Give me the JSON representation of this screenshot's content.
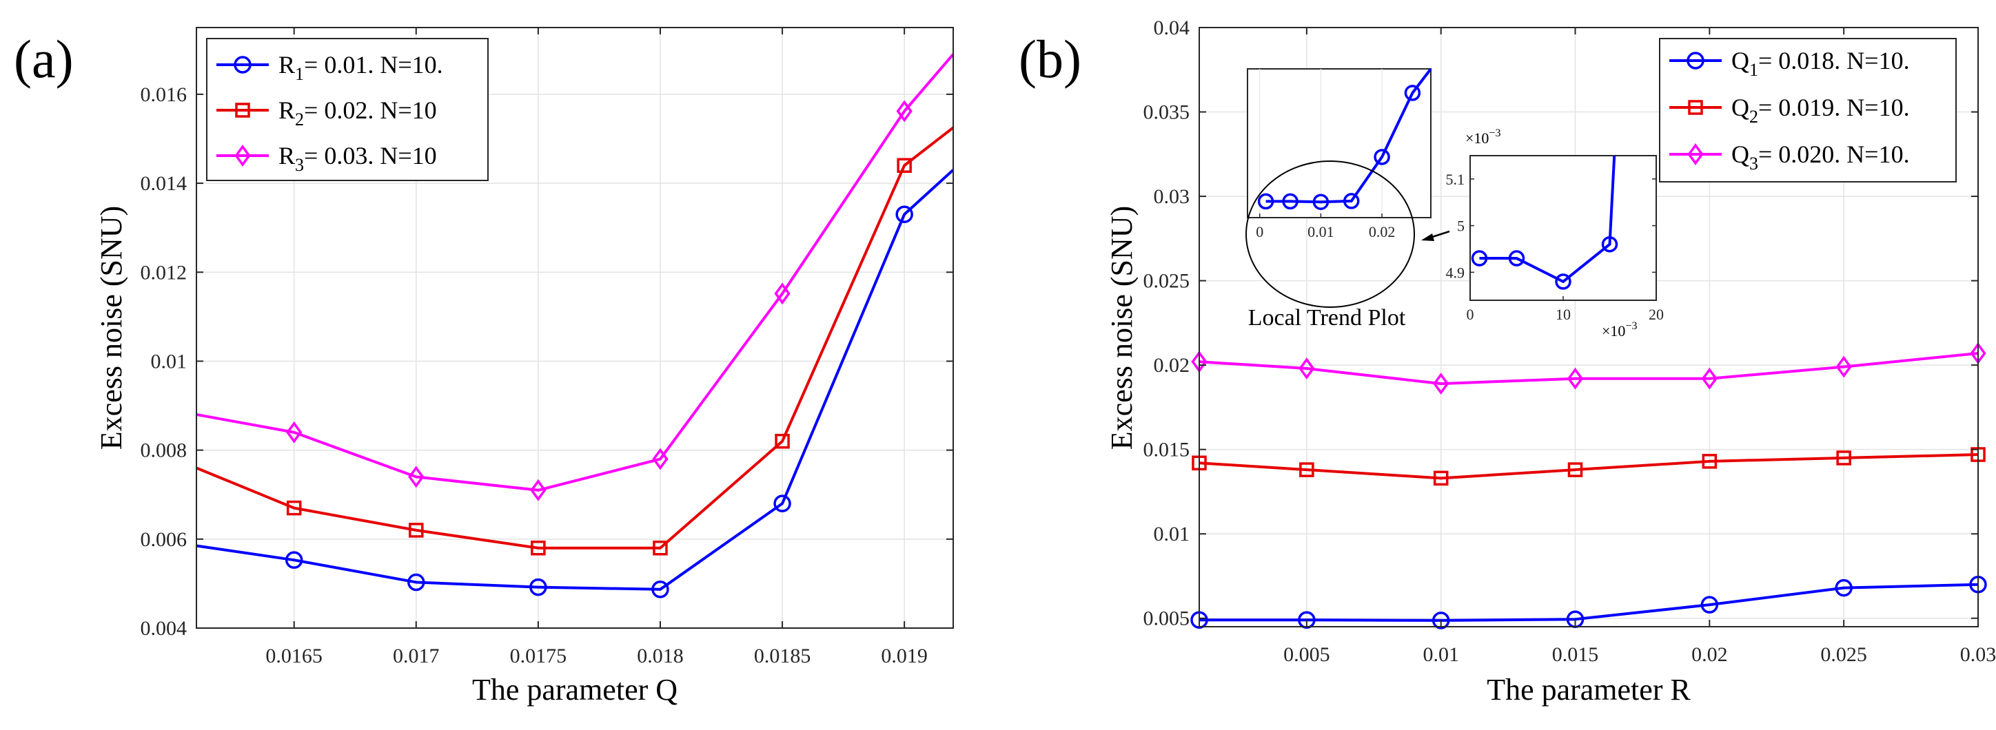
{
  "chart_data": [
    {
      "type": "line",
      "panel_label": "(a)",
      "xlabel": "The parameter Q",
      "ylabel": "Excess noise (SNU)",
      "xlim": [
        0.0161,
        0.0192
      ],
      "ylim": [
        0.004,
        0.0175
      ],
      "grid": true,
      "legend_position": "top-left",
      "xticks": [
        {
          "value": 0.0165,
          "label": "0.0165"
        },
        {
          "value": 0.017,
          "label": "0.017"
        },
        {
          "value": 0.0175,
          "label": "0.0175"
        },
        {
          "value": 0.018,
          "label": "0.018"
        },
        {
          "value": 0.0185,
          "label": "0.0185"
        },
        {
          "value": 0.019,
          "label": "0.019"
        }
      ],
      "yticks": [
        {
          "value": 0.004,
          "label": "0.004"
        },
        {
          "value": 0.006,
          "label": "0.006"
        },
        {
          "value": 0.008,
          "label": "0.008"
        },
        {
          "value": 0.01,
          "label": "0.01"
        },
        {
          "value": 0.012,
          "label": "0.012"
        },
        {
          "value": 0.014,
          "label": "0.014"
        },
        {
          "value": 0.016,
          "label": "0.016"
        }
      ],
      "x": [
        0.0165,
        0.017,
        0.0175,
        0.018,
        0.0185,
        0.019
      ],
      "series": [
        {
          "name": "R1 = 0.01. N=10.",
          "label_base": "R",
          "label_sub": "1",
          "label_rest": "= 0.01. N=10.",
          "color": "#0000ff",
          "marker": "circle",
          "start": [
            0.0161,
            0.00585
          ],
          "end": [
            0.0192,
            0.0143
          ],
          "values": [
            0.00553,
            0.00503,
            0.00492,
            0.00487,
            0.0068,
            0.0133
          ]
        },
        {
          "name": "R2 = 0.02. N=10",
          "label_base": "R",
          "label_sub": "2",
          "label_rest": "= 0.02. N=10",
          "color": "#e60000",
          "marker": "square",
          "start": [
            0.0161,
            0.0076
          ],
          "end": [
            0.0192,
            0.01525
          ],
          "values": [
            0.0067,
            0.0062,
            0.0058,
            0.0058,
            0.0082,
            0.0144
          ]
        },
        {
          "name": "R3 = 0.03. N=10",
          "label_base": "R",
          "label_sub": "3",
          "label_rest": "= 0.03. N=10",
          "color": "#ff00ff",
          "marker": "diamond",
          "start": [
            0.0161,
            0.0088
          ],
          "end": [
            0.0192,
            0.0169
          ],
          "values": [
            0.0084,
            0.0074,
            0.0071,
            0.0078,
            0.01152,
            0.01562
          ]
        }
      ]
    },
    {
      "type": "line",
      "panel_label": "(b)",
      "xlabel": "The parameter R",
      "ylabel": "Excess noise (SNU)",
      "xlim": [
        0.001,
        0.03
      ],
      "ylim": [
        0.0045,
        0.04
      ],
      "grid": true,
      "legend_position": "top-right",
      "xticks": [
        {
          "value": 0.005,
          "label": "0.005"
        },
        {
          "value": 0.01,
          "label": "0.01"
        },
        {
          "value": 0.015,
          "label": "0.015"
        },
        {
          "value": 0.02,
          "label": "0.02"
        },
        {
          "value": 0.025,
          "label": "0.025"
        },
        {
          "value": 0.03,
          "label": "0.03"
        }
      ],
      "yticks": [
        {
          "value": 0.005,
          "label": "0.005"
        },
        {
          "value": 0.01,
          "label": "0.01"
        },
        {
          "value": 0.015,
          "label": "0.015"
        },
        {
          "value": 0.02,
          "label": "0.02"
        },
        {
          "value": 0.025,
          "label": "0.025"
        },
        {
          "value": 0.03,
          "label": "0.03"
        },
        {
          "value": 0.035,
          "label": "0.035"
        },
        {
          "value": 0.04,
          "label": "0.04"
        }
      ],
      "x": [
        0.001,
        0.005,
        0.01,
        0.015,
        0.02,
        0.025,
        0.03
      ],
      "series": [
        {
          "name": "Q1 = 0.018. N=10.",
          "label_base": "Q",
          "label_sub": "1",
          "label_rest": "= 0.018. N=10.",
          "color": "#0000ff",
          "marker": "circle",
          "values": [
            0.0049,
            0.0049,
            0.00487,
            0.00494,
            0.0058,
            0.0068,
            0.007
          ]
        },
        {
          "name": "Q2 = 0.019. N=10.",
          "label_base": "Q",
          "label_sub": "2",
          "label_rest": "= 0.019. N=10.",
          "color": "#e60000",
          "marker": "square",
          "values": [
            0.0142,
            0.0138,
            0.0133,
            0.0138,
            0.0143,
            0.0145,
            0.0147
          ]
        },
        {
          "name": "Q3 = 0.020. N=10.",
          "label_base": "Q",
          "label_sub": "3",
          "label_rest": "= 0.020. N=10.",
          "color": "#ff00ff",
          "marker": "diamond",
          "values": [
            0.0202,
            0.0198,
            0.0189,
            0.0192,
            0.0192,
            0.0199,
            0.0207
          ]
        }
      ],
      "inset_main": {
        "xlim": [
          -0.002,
          0.028
        ],
        "ylim": [
          0.0035,
          0.0165
        ],
        "xticks": [
          {
            "value": 0,
            "label": "0"
          },
          {
            "value": 0.01,
            "label": "0.01"
          },
          {
            "value": 0.02,
            "label": "0.02"
          }
        ],
        "x": [
          0.001,
          0.005,
          0.01,
          0.015,
          0.02,
          0.025
        ],
        "values": [
          0.00492,
          0.00492,
          0.00487,
          0.00495,
          0.0088,
          0.0144
        ],
        "end": [
          0.028,
          0.0165
        ],
        "color": "#0000ff"
      },
      "inset_zoom": {
        "xlim": [
          0,
          0.02
        ],
        "ylim": [
          0.00484,
          0.00515
        ],
        "xticks": [
          {
            "value": 0,
            "label": "0"
          },
          {
            "value": 0.01,
            "label": "10"
          },
          {
            "value": 0.02,
            "label": "20"
          }
        ],
        "yticks": [
          {
            "value": 0.0049,
            "label": "4.9"
          },
          {
            "value": 0.005,
            "label": "5"
          },
          {
            "value": 0.0051,
            "label": "5.1"
          }
        ],
        "x": [
          0.001,
          0.005,
          0.01,
          0.015
        ],
        "values": [
          0.00493,
          0.00493,
          0.00488,
          0.00496
        ],
        "end": [
          0.0155,
          0.00515
        ],
        "x_multiplier": "×10",
        "y_multiplier": "×10",
        "exponent": "−3",
        "color": "#0000ff"
      },
      "annotation": "Local Trend Plot"
    }
  ]
}
